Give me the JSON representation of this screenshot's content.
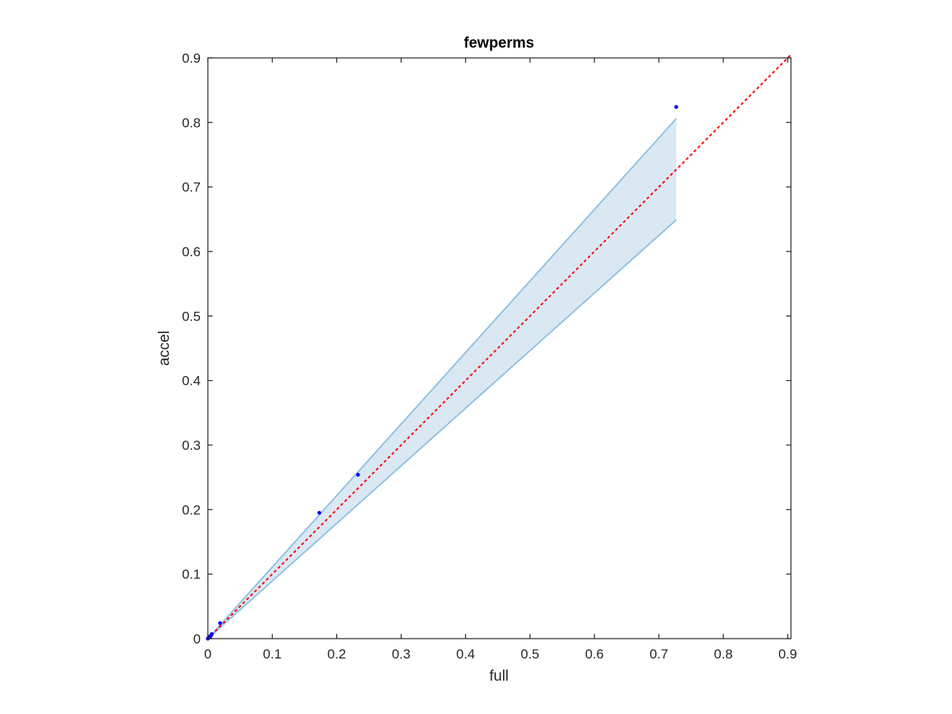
{
  "chart_data": {
    "type": "scatter",
    "title": "fewperms",
    "xlabel": "full",
    "ylabel": "accel",
    "xlim": [
      0,
      0.905
    ],
    "ylim": [
      0,
      0.9
    ],
    "xticks": [
      "0",
      "0.1",
      "0.2",
      "0.3",
      "0.4",
      "0.5",
      "0.6",
      "0.7",
      "0.8",
      "0.9"
    ],
    "yticks": [
      "0",
      "0.1",
      "0.2",
      "0.3",
      "0.4",
      "0.5",
      "0.6",
      "0.7",
      "0.8",
      "0.9"
    ],
    "grid": false,
    "legend": "none",
    "series": [
      {
        "kind": "points",
        "color": "#0000ff",
        "x": [
          0.0,
          0.001,
          0.002,
          0.003,
          0.004,
          0.005,
          0.006,
          0.019,
          0.173,
          0.233,
          0.727
        ],
        "y": [
          0.0,
          0.001,
          0.002,
          0.003,
          0.004,
          0.005,
          0.007,
          0.024,
          0.195,
          0.254,
          0.824
        ]
      },
      {
        "kind": "reference-line",
        "color": "#ff0000",
        "style": "dotted",
        "x": [
          0,
          0.905
        ],
        "y": [
          0,
          0.905
        ]
      },
      {
        "kind": "band",
        "color": "#8cbfe0",
        "fill": "#dae8f4",
        "x": [
          0,
          0.727
        ],
        "upper": [
          0,
          0.806
        ],
        "lower": [
          0,
          0.649
        ]
      }
    ]
  }
}
